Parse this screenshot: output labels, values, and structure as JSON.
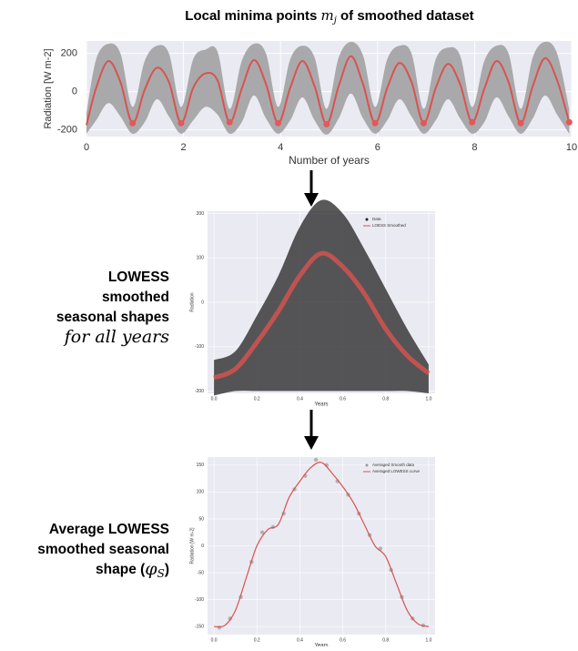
{
  "chart_data": [
    {
      "type": "line",
      "title": [
        "Local minima points ",
        "m",
        "j",
        " of smoothed dataset"
      ],
      "x_label": "Number of years",
      "y_label": "Radiation [W m-2]",
      "xlim": [
        0,
        10
      ],
      "xticks": [
        0,
        2,
        4,
        6,
        8,
        10
      ],
      "ylim": [
        -235,
        265
      ],
      "yticks": [
        -200,
        0,
        200
      ],
      "grid": true,
      "x": [
        0,
        0.2,
        0.45,
        0.7,
        0.95,
        1.2,
        1.45,
        1.7,
        1.95,
        2.2,
        2.45,
        2.7,
        2.95,
        3.2,
        3.45,
        3.7,
        3.95,
        4.2,
        4.45,
        4.7,
        4.95,
        5.2,
        5.45,
        5.7,
        5.95,
        6.2,
        6.45,
        6.7,
        6.95,
        7.2,
        7.45,
        7.7,
        7.95,
        8.2,
        8.45,
        8.7,
        8.95,
        9.2,
        9.45,
        9.7,
        9.95
      ],
      "band": {
        "color": "#a9a9ab",
        "upper": [
          -110,
          170,
          250,
          200,
          -80,
          160,
          240,
          200,
          -80,
          170,
          220,
          210,
          -90,
          160,
          250,
          200,
          -80,
          170,
          240,
          180,
          -90,
          180,
          260,
          190,
          -80,
          170,
          240,
          200,
          -90,
          170,
          230,
          190,
          -80,
          160,
          240,
          200,
          -90,
          180,
          260,
          200,
          -90
        ],
        "lower": [
          -220,
          -150,
          -60,
          -130,
          -220,
          -160,
          -40,
          -130,
          -220,
          -150,
          -80,
          -120,
          -220,
          -160,
          -20,
          -140,
          -220,
          -150,
          -30,
          -150,
          -225,
          -140,
          -10,
          -140,
          -220,
          -150,
          -40,
          -130,
          -220,
          -150,
          -40,
          -140,
          -220,
          -160,
          -30,
          -130,
          -220,
          -140,
          -20,
          -120,
          -220
        ]
      },
      "series": [
        {
          "color": "#d9534f",
          "values": [
            -175,
            20,
            160,
            50,
            -165,
            10,
            125,
            50,
            -165,
            20,
            95,
            60,
            -160,
            15,
            165,
            40,
            -165,
            20,
            160,
            30,
            -170,
            30,
            185,
            40,
            -165,
            20,
            150,
            50,
            -165,
            20,
            145,
            40,
            -160,
            15,
            160,
            50,
            -165,
            30,
            175,
            60,
            -160
          ]
        }
      ],
      "minima": {
        "color": "#e05a5a",
        "x": [
          0.95,
          1.95,
          2.95,
          3.95,
          4.95,
          5.95,
          6.95,
          7.95,
          8.95,
          9.95
        ],
        "values": [
          -165,
          -165,
          -160,
          -165,
          -170,
          -165,
          -165,
          -160,
          -165,
          -160
        ]
      }
    },
    {
      "type": "scatter",
      "caption": [
        "LOWESS",
        "smoothed",
        "seasonal shapes",
        "for all years"
      ],
      "x_label": "Years",
      "y_label": "Radiation",
      "xlim": [
        -0.03,
        1.03
      ],
      "xticks": [
        {
          "value": 0,
          "label": "0.0"
        },
        {
          "value": 0.2,
          "label": "0.2"
        },
        {
          "value": 0.4,
          "label": "0.4"
        },
        {
          "value": 0.6,
          "label": "0.6"
        },
        {
          "value": 0.8,
          "label": "0.8"
        },
        {
          "value": 1,
          "label": "1.0"
        }
      ],
      "ylim": [
        -205,
        205
      ],
      "yticks": [
        -200,
        -100,
        0,
        100,
        200
      ],
      "grid": true,
      "x": [
        0,
        0.1,
        0.2,
        0.3,
        0.4,
        0.5,
        0.6,
        0.7,
        0.8,
        0.9,
        1
      ],
      "band": {
        "name": "Data",
        "color": "#222222",
        "upper": [
          -130,
          -110,
          -30,
          60,
          170,
          230,
          200,
          120,
          30,
          -60,
          -140
        ],
        "lower": [
          -210,
          -200,
          -200,
          -200,
          -200,
          -200,
          -200,
          -200,
          -200,
          -200,
          -205
        ]
      },
      "series": [
        {
          "name": "LOESS Smoothed",
          "color": "#d9534f",
          "values": [
            -170,
            -150,
            -90,
            -20,
            60,
            110,
            80,
            20,
            -60,
            -120,
            -160
          ]
        }
      ]
    },
    {
      "type": "scatter",
      "caption": [
        "Average LOWESS",
        "smoothed seasonal",
        "shape (",
        "φ",
        "S",
        ")"
      ],
      "x_label": "Years",
      "y_label": "Radiation [W m-2]",
      "xlim": [
        -0.03,
        1.03
      ],
      "xticks": [
        {
          "value": 0,
          "label": "0.0"
        },
        {
          "value": 0.2,
          "label": "0.2"
        },
        {
          "value": 0.4,
          "label": "0.4"
        },
        {
          "value": 0.6,
          "label": "0.6"
        },
        {
          "value": 0.8,
          "label": "0.8"
        },
        {
          "value": 1,
          "label": "1.0"
        }
      ],
      "ylim": [
        -165,
        165
      ],
      "yticks": [
        -150,
        -100,
        -50,
        0,
        50,
        100,
        150
      ],
      "grid": true,
      "points": {
        "name": "Averaged Smooth data",
        "color": "#9a9a9a",
        "x": [
          0.025,
          0.075,
          0.125,
          0.175,
          0.225,
          0.275,
          0.325,
          0.375,
          0.425,
          0.475,
          0.525,
          0.575,
          0.625,
          0.675,
          0.725,
          0.775,
          0.825,
          0.875,
          0.925,
          0.975
        ],
        "values": [
          -152,
          -135,
          -95,
          -30,
          25,
          35,
          60,
          105,
          130,
          160,
          150,
          120,
          95,
          60,
          20,
          -5,
          -45,
          -95,
          -135,
          -148
        ]
      },
      "x": [
        0,
        0.05,
        0.1,
        0.15,
        0.2,
        0.25,
        0.3,
        0.35,
        0.4,
        0.45,
        0.5,
        0.55,
        0.6,
        0.65,
        0.7,
        0.75,
        0.8,
        0.85,
        0.9,
        0.95,
        1
      ],
      "series": [
        {
          "name": "Averaged LOWESS curve",
          "color": "#d9534f",
          "values": [
            -150,
            -148,
            -120,
            -60,
            0,
            30,
            40,
            90,
            120,
            145,
            155,
            135,
            110,
            80,
            40,
            0,
            -20,
            -70,
            -120,
            -145,
            -150
          ]
        }
      ]
    }
  ]
}
